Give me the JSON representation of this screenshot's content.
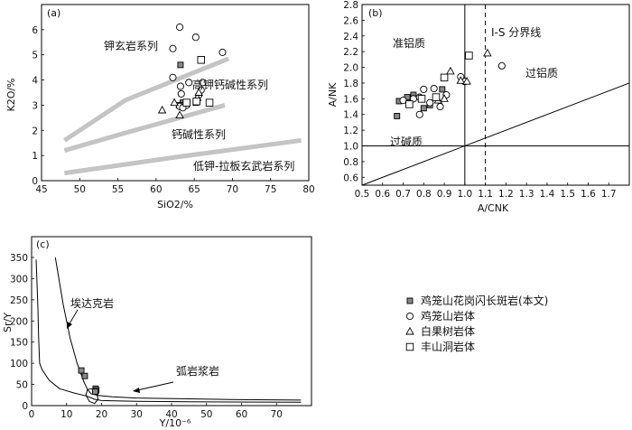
{
  "panels": [
    {
      "id": "a",
      "panel_label": "(a)",
      "chart_data": {
        "type": "scatter",
        "xlabel": "SiO2/%",
        "ylabel": "K2O/%",
        "xlim": [
          45,
          80
        ],
        "ylim": [
          0,
          7
        ],
        "xticks": [
          45,
          50,
          55,
          60,
          65,
          70,
          75,
          80
        ],
        "yticks": [
          0,
          1,
          2,
          3,
          4,
          5,
          6
        ],
        "boundaries": [
          {
            "name": "upper",
            "points": [
              [
                48,
                1.6
              ],
              [
                56,
                3.2
              ],
              [
                69.5,
                4.85
              ]
            ]
          },
          {
            "name": "middle",
            "points": [
              [
                48,
                1.2
              ],
              [
                56,
                1.9
              ],
              [
                69,
                3.0
              ]
            ]
          },
          {
            "name": "lower",
            "points": [
              [
                48,
                0.3
              ],
              [
                63,
                0.95
              ],
              [
                79,
                1.6
              ]
            ]
          }
        ],
        "zones": [
          "钾玄岩系列",
          "高钾钙碱性系列",
          "钙碱性系列",
          "低钾-拉板玄武岩系列"
        ],
        "series": [
          {
            "name": "鸡笼山花岗闪长斑岩(本文)",
            "marker": "square-dot",
            "points": [
              [
                63.2,
                4.6
              ],
              [
                63.0,
                3.0
              ],
              [
                63.5,
                3.1
              ],
              [
                65.2,
                3.1
              ],
              [
                63.6,
                3.0
              ]
            ]
          },
          {
            "name": "鸡笼山岩体",
            "marker": "circle",
            "points": [
              [
                63.1,
                6.1
              ],
              [
                62.2,
                5.25
              ],
              [
                65.2,
                5.7
              ],
              [
                68.7,
                5.1
              ],
              [
                62.2,
                4.1
              ],
              [
                63.2,
                3.75
              ],
              [
                64.3,
                3.9
              ],
              [
                66.1,
                3.9
              ],
              [
                65.9,
                3.6
              ],
              [
                65.6,
                3.4
              ],
              [
                63.3,
                3.45
              ],
              [
                64.0,
                3.0
              ],
              [
                63.1,
                2.95
              ],
              [
                63.5,
                2.9
              ]
            ]
          },
          {
            "name": "白果树岩体",
            "marker": "triangle",
            "points": [
              [
                60.8,
                2.8
              ],
              [
                62.4,
                3.1
              ],
              [
                63.1,
                2.6
              ],
              [
                65.4,
                3.3
              ],
              [
                65.6,
                3.5
              ]
            ]
          },
          {
            "name": "丰山洞岩体",
            "marker": "square",
            "points": [
              [
                65.9,
                4.8
              ],
              [
                67.0,
                3.1
              ],
              [
                64.0,
                3.1
              ],
              [
                65.3,
                3.15
              ]
            ]
          }
        ]
      }
    },
    {
      "id": "b",
      "panel_label": "(b)",
      "chart_data": {
        "type": "scatter",
        "xlabel": "A/CNK",
        "ylabel": "A/NK",
        "xlim": [
          0.5,
          1.8
        ],
        "ylim": [
          0.5,
          2.8
        ],
        "xticks": [
          0.5,
          0.6,
          0.7,
          0.8,
          0.9,
          1.0,
          1.1,
          1.2,
          1.3,
          1.4,
          1.5,
          1.6,
          1.7
        ],
        "yticks": [
          0.6,
          0.8,
          1.0,
          1.2,
          1.4,
          1.6,
          1.8,
          2.0,
          2.2,
          2.4,
          2.6,
          2.8
        ],
        "reference_lines": {
          "vertical_solid": 1.0,
          "vertical_dashed": 1.1,
          "horizontal": 1.0,
          "diagonal": [
            [
              0.5,
              0.5
            ],
            [
              1.8,
              1.8
            ]
          ]
        },
        "zones": [
          "准铝质",
          "I-S 分界线",
          "过铝质",
          "过碱质"
        ],
        "series": [
          {
            "name": "鸡笼山花岗闪长斑岩(本文)",
            "marker": "square-dot",
            "points": [
              [
                0.67,
                1.38
              ],
              [
                0.68,
                1.57
              ],
              [
                0.72,
                1.62
              ],
              [
                0.75,
                1.65
              ],
              [
                0.83,
                1.52
              ],
              [
                0.89,
                1.72
              ],
              [
                0.8,
                1.48
              ]
            ]
          },
          {
            "name": "鸡笼山岩体",
            "marker": "circle",
            "points": [
              [
                0.7,
                1.58
              ],
              [
                0.75,
                1.6
              ],
              [
                0.78,
                1.62
              ],
              [
                0.8,
                1.72
              ],
              [
                0.83,
                1.55
              ],
              [
                0.85,
                1.73
              ],
              [
                0.88,
                1.5
              ],
              [
                0.78,
                1.4
              ],
              [
                0.98,
                1.88
              ],
              [
                1.0,
                1.82
              ],
              [
                1.18,
                2.02
              ],
              [
                0.91,
                1.65
              ]
            ]
          },
          {
            "name": "白果树岩体",
            "marker": "triangle",
            "points": [
              [
                0.87,
                1.58
              ],
              [
                0.93,
                1.95
              ],
              [
                0.98,
                1.83
              ],
              [
                1.01,
                1.82
              ],
              [
                1.11,
                2.18
              ],
              [
                0.9,
                1.6
              ]
            ]
          },
          {
            "name": "丰山洞岩体",
            "marker": "square",
            "points": [
              [
                0.73,
                1.53
              ],
              [
                0.79,
                1.6
              ],
              [
                0.86,
                1.62
              ],
              [
                0.9,
                1.87
              ],
              [
                1.02,
                2.15
              ]
            ]
          }
        ]
      }
    },
    {
      "id": "c",
      "panel_label": "(c)",
      "chart_data": {
        "type": "line",
        "xlabel": "Y/10⁻⁶",
        "ylabel": "Sr/Y",
        "xlim": [
          0,
          80
        ],
        "ylim": [
          0,
          350
        ],
        "xticks": [
          0,
          10,
          20,
          30,
          40,
          50,
          60,
          70
        ],
        "yticks": [
          0,
          50,
          100,
          150,
          200,
          250,
          300,
          350
        ],
        "curves": [
          {
            "name": "adakite",
            "points": [
              [
                6.8,
                350
              ],
              [
                9,
                240
              ],
              [
                11,
                160
              ],
              [
                13,
                100
              ],
              [
                15,
                55
              ],
              [
                16,
                38
              ],
              [
                17,
                28
              ],
              [
                19,
                24
              ],
              [
                23,
                21
              ],
              [
                30,
                18
              ],
              [
                45,
                16
              ],
              [
                60,
                14
              ],
              [
                77,
                13
              ]
            ]
          },
          {
            "name": "arc",
            "points": [
              [
                1.3,
                345
              ],
              [
                1.8,
                230
              ],
              [
                2.0,
                160
              ],
              [
                2.3,
                100
              ],
              [
                3,
                85
              ],
              [
                5,
                60
              ],
              [
                8,
                40
              ],
              [
                12,
                30
              ],
              [
                16,
                22
              ],
              [
                18,
                15
              ],
              [
                20,
                12
              ],
              [
                30,
                10
              ],
              [
                45,
                9
              ],
              [
                77,
                8
              ]
            ]
          },
          {
            "name": "overlap",
            "points": [
              [
                16,
                38
              ],
              [
                15.5,
                25
              ],
              [
                16.5,
                10
              ],
              [
                18,
                5
              ],
              [
                19,
                15
              ],
              [
                18.5,
                35
              ],
              [
                17,
                40
              ]
            ]
          }
        ],
        "zones": [
          "埃达克岩",
          "弧岩浆岩"
        ],
        "series": [
          {
            "name": "鸡笼山花岗闪长斑岩(本文)",
            "marker": "square-dot",
            "points": [
              [
                14.2,
                83
              ],
              [
                15.2,
                70
              ],
              [
                18.3,
                40
              ],
              [
                18.5,
                36
              ],
              [
                18.2,
                33
              ]
            ]
          }
        ]
      }
    }
  ],
  "legend": [
    {
      "marker": "square-dot",
      "label": "鸡笼山花岗闪长斑岩(本文)"
    },
    {
      "marker": "circle",
      "label": "鸡笼山岩体"
    },
    {
      "marker": "triangle",
      "label": "白果树岩体"
    },
    {
      "marker": "square",
      "label": "丰山洞岩体"
    }
  ]
}
